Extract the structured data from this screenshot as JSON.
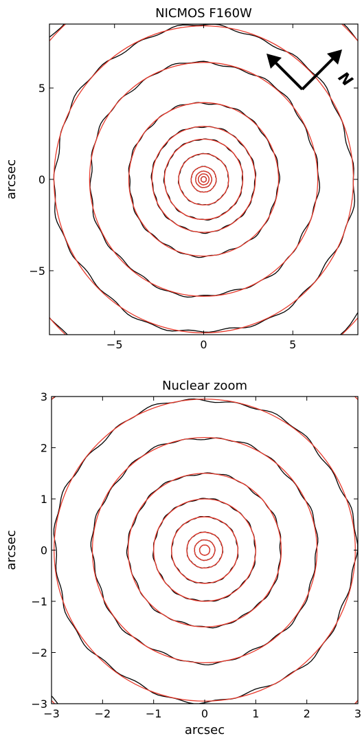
{
  "chart_data": [
    {
      "type": "contour",
      "title": "NICMOS F160W",
      "ylabel": "arcsec",
      "xlim": [
        -8.65,
        8.65
      ],
      "ylim": [
        -8.5,
        8.5
      ],
      "xticks": [
        {
          "value": -5,
          "label": "−5"
        },
        0,
        5
      ],
      "yticks": [
        {
          "value": -5,
          "label": "−5"
        },
        0,
        5
      ],
      "contours": [
        0.15,
        0.3,
        0.45,
        0.7,
        1.4,
        2.2,
        2.9,
        4.2,
        6.4,
        8.4,
        11.5
      ],
      "data_color": "#000000",
      "model_color": "#e8392b",
      "compass_label": "N"
    },
    {
      "type": "contour",
      "title": "Nuclear zoom",
      "xlabel": "arcsec",
      "ylabel": "arcsec",
      "xlim": [
        -3,
        3
      ],
      "ylim": [
        -3,
        3
      ],
      "xticks": [
        {
          "value": -3,
          "label": "−3"
        },
        {
          "value": -2,
          "label": "−2"
        },
        {
          "value": -1,
          "label": "−1"
        },
        0,
        1,
        2,
        3
      ],
      "yticks": [
        {
          "value": -3,
          "label": "−3"
        },
        {
          "value": -2,
          "label": "−2"
        },
        {
          "value": -1,
          "label": "−1"
        },
        0,
        1,
        2,
        3
      ],
      "contours": [
        0.1,
        0.2,
        0.35,
        0.65,
        1.0,
        1.5,
        2.2,
        2.95,
        4.2
      ],
      "data_color": "#000000",
      "model_color": "#e8392b"
    }
  ]
}
